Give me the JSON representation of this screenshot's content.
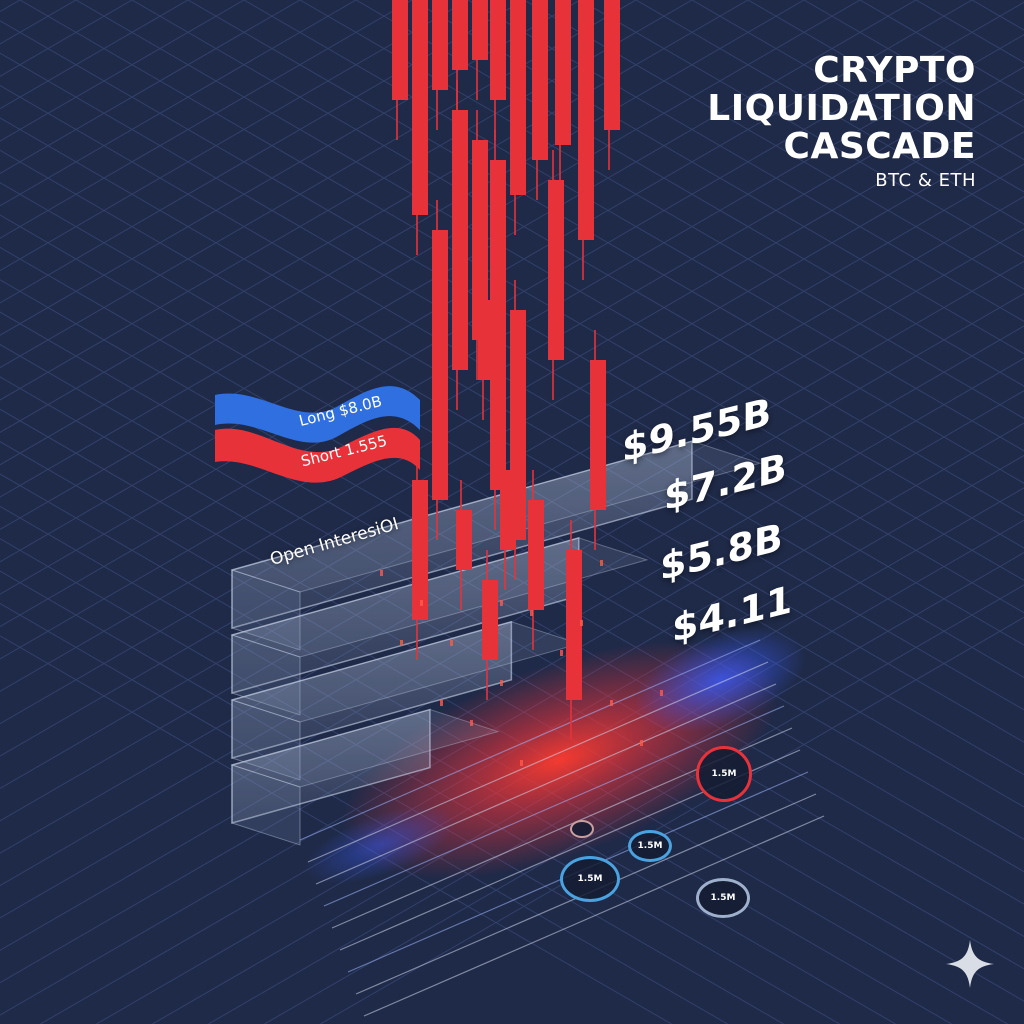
{
  "title": {
    "line1": "CRYPTO",
    "line2": "LIQUIDATION",
    "line3": "CASCADE",
    "subtitle": "BTC & ETH"
  },
  "ribbons": {
    "long_label": "Long $8.0B",
    "short_label": "Short 1.555"
  },
  "open_interest_label": "Open InteresiOI",
  "colors": {
    "background": "#1f2a48",
    "candle": "#e8323a",
    "long": "#2f6fe0",
    "short": "#e8323a",
    "glass": "#9fb0cc"
  },
  "chart_data": {
    "type": "bar",
    "categories": [
      "$9.55B",
      "$7.2B",
      "$5.8B",
      "$4.11"
    ],
    "values": [
      9.55,
      7.2,
      5.8,
      4.11
    ],
    "value_labels": [
      "$9.55B",
      "$7.2B",
      "$5.8B",
      "$4.11"
    ],
    "series_labels": [
      "Long $8.0B",
      "Short 1.555"
    ],
    "title": "CRYPTO LIQUIDATION CASCADE",
    "subtitle": "BTC & ETH",
    "xlabel": "",
    "ylabel": "",
    "grid": true,
    "legend": "left"
  },
  "bubbles": [
    {
      "label": "1.5M",
      "color": "#e8323a",
      "size": "large"
    },
    {
      "label": "1.5M",
      "color": "#4aa3e0",
      "size": "large"
    },
    {
      "label": "1.5M",
      "color": "#4aa3e0",
      "size": "medium"
    },
    {
      "label": "1.5M",
      "color": "#9fb0cc",
      "size": "medium"
    },
    {
      "label": "",
      "color": "#c9a0a0",
      "size": "small"
    }
  ],
  "icons": {
    "sparkle": "sparkle-icon"
  }
}
